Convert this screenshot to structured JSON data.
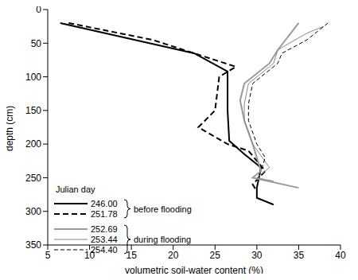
{
  "chart_data": {
    "type": "line",
    "x_label": "volumetric soil-water content (%)",
    "y_label": "depth (cm)",
    "xlim": [
      5,
      40
    ],
    "xticks": [
      5,
      10,
      15,
      20,
      25,
      30,
      35,
      40
    ],
    "ylim": [
      0,
      350
    ],
    "yticks": [
      0,
      50,
      100,
      150,
      200,
      250,
      300,
      350
    ],
    "log": false,
    "grid": false,
    "legend_title": "Julian day",
    "legend": "lower left",
    "series": [
      {
        "name": "246.00",
        "group": "before flooding",
        "color": "#000000",
        "line_style": "solid",
        "x": [
          6.5,
          22.5,
          26.5,
          26.5,
          26.7,
          28.5,
          30.5,
          30,
          30,
          32
        ],
        "y": [
          20,
          65,
          92,
          150,
          195,
          215,
          235,
          265,
          280,
          290
        ]
      },
      {
        "name": "251.78",
        "group": "before flooding",
        "color": "#000000",
        "line_style": "dashed",
        "x": [
          7.5,
          17.5,
          22.5,
          27.5,
          25.5,
          25,
          23,
          26.5,
          29,
          31,
          29.5,
          30
        ],
        "y": [
          20,
          45,
          65,
          85,
          100,
          150,
          175,
          200,
          210,
          240,
          260,
          270
        ]
      },
      {
        "name": "252.69",
        "group": "during flooding",
        "color": "#999999",
        "line_style": "solid",
        "x": [
          35,
          32.5,
          31.5,
          28.5,
          28,
          28.5,
          29.5,
          30.5,
          29.5,
          35
        ],
        "y": [
          20,
          60,
          80,
          110,
          135,
          165,
          200,
          240,
          250,
          265
        ]
      },
      {
        "name": "253.44",
        "group": "during flooding",
        "color": "#888888",
        "line_style": "thin",
        "x": [
          38,
          36,
          32.5,
          32,
          29,
          28.5,
          28.5,
          29.5,
          31.5,
          30,
          32
        ],
        "y": [
          25,
          35,
          60,
          80,
          110,
          140,
          165,
          200,
          235,
          250,
          255
        ]
      },
      {
        "name": "254.40",
        "group": "during flooding",
        "color": "#000000",
        "line_style": "thin dashed",
        "x": [
          38.5,
          36,
          33,
          32.5,
          29.5,
          29,
          29,
          30,
          31,
          30.5
        ],
        "y": [
          20,
          45,
          65,
          80,
          110,
          140,
          165,
          200,
          220,
          240
        ]
      }
    ]
  }
}
